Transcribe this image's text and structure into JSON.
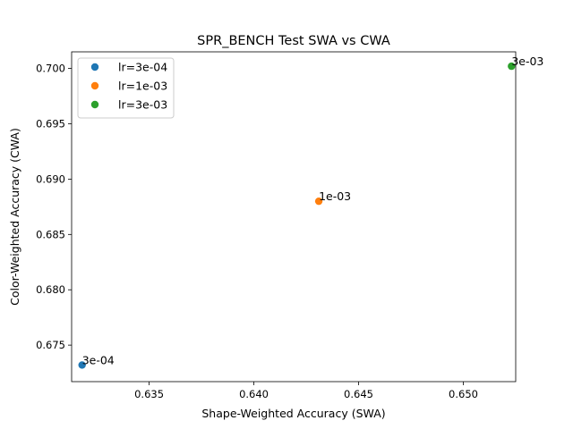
{
  "chart_data": {
    "type": "scatter",
    "title": "SPR_BENCH Test SWA vs CWA",
    "xlabel": "Shape-Weighted Accuracy (SWA)",
    "ylabel": "Color-Weighted Accuracy (CWA)",
    "xlim": [
      0.6313,
      0.6525
    ],
    "ylim": [
      0.6717,
      0.7015
    ],
    "xticks": [
      0.635,
      0.64,
      0.645,
      0.65
    ],
    "xtick_labels": [
      "0.635",
      "0.640",
      "0.645",
      "0.650"
    ],
    "yticks": [
      0.675,
      0.68,
      0.685,
      0.69,
      0.695,
      0.7
    ],
    "ytick_labels": [
      "0.675",
      "0.680",
      "0.685",
      "0.690",
      "0.695",
      "0.700"
    ],
    "grid": false,
    "legend_position": "upper-left",
    "series": [
      {
        "name": "lr=3e-04",
        "color": "#1f77b4",
        "x": [
          0.6318
        ],
        "y": [
          0.6732
        ],
        "labels": [
          "3e-04"
        ]
      },
      {
        "name": "lr=1e-03",
        "color": "#ff7f0e",
        "x": [
          0.6431
        ],
        "y": [
          0.688
        ],
        "labels": [
          "1e-03"
        ]
      },
      {
        "name": "lr=3e-03",
        "color": "#2ca02c",
        "x": [
          0.6523
        ],
        "y": [
          0.7002
        ],
        "labels": [
          "3e-03"
        ]
      }
    ]
  }
}
